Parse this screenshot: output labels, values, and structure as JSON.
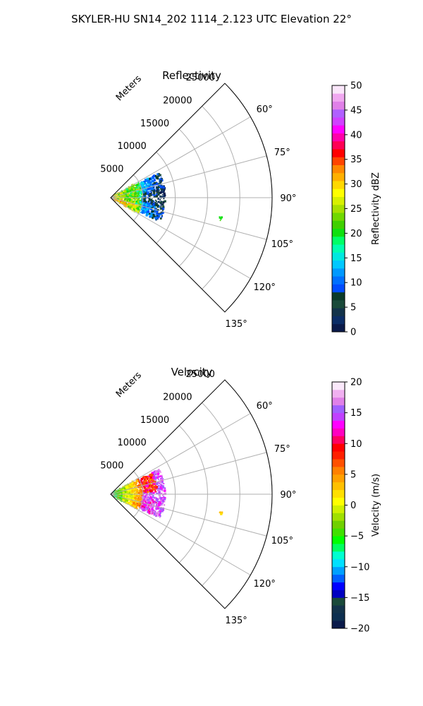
{
  "suptitle": "SKYLER-HU  SN14_202  1114_2.123 UTC Elevation 22°",
  "chart_data": [
    {
      "type": "heatmap",
      "kind": "polar-sector",
      "title": "Reflectivity",
      "range_axis_label": "Meters",
      "range_ticks": [
        "5000",
        "10000",
        "15000",
        "20000",
        "25000"
      ],
      "range_values": [
        5000,
        10000,
        15000,
        20000,
        25000
      ],
      "rlim": [
        0,
        25000
      ],
      "azimuth_ticks": [
        "60°",
        "75°",
        "90°",
        "105°",
        "120°",
        "135°"
      ],
      "azimuth_values": [
        60,
        75,
        90,
        105,
        120,
        135
      ],
      "azimuth_range": [
        45,
        135
      ],
      "grid": true,
      "colorbar": {
        "label": "Reflectivity dBZ",
        "range": [
          0,
          50
        ],
        "tick_labels": [
          "0",
          "5",
          "10",
          "15",
          "20",
          "25",
          "30",
          "35",
          "40",
          "45",
          "50"
        ],
        "tick_values": [
          0,
          5,
          10,
          15,
          20,
          25,
          30,
          35,
          40,
          45,
          50
        ],
        "colormap": "pyart_NWSRef",
        "colors": [
          "#0a1a4a",
          "#0b2d66",
          "#13334a",
          "#1a4a3a",
          "#0a3a2a",
          "#004cff",
          "#0070ff",
          "#0099ff",
          "#00c8ff",
          "#00e8e0",
          "#00ffb0",
          "#00ff66",
          "#10e010",
          "#40d000",
          "#70d800",
          "#a8e000",
          "#d8f000",
          "#ffff00",
          "#ffd800",
          "#ffb000",
          "#ff8800",
          "#ff4400",
          "#ff0000",
          "#ff0055",
          "#ff00aa",
          "#ff00ff",
          "#d040ff",
          "#b060ff",
          "#e080e8",
          "#f0a8f0",
          "#fae6fa"
        ]
      },
      "echoes": [
        {
          "band": "near-range",
          "r": [
            500,
            5000
          ],
          "az": [
            60,
            120
          ],
          "dbz": [
            18,
            32
          ]
        },
        {
          "band": "mid-range",
          "r": [
            5000,
            8500
          ],
          "az": [
            63,
            116
          ],
          "dbz": [
            10,
            22
          ]
        },
        {
          "band": "isolated",
          "r": [
            17000,
            17500
          ],
          "az": [
            99,
            102
          ],
          "dbz": [
            20,
            22
          ]
        }
      ]
    },
    {
      "type": "heatmap",
      "kind": "polar-sector",
      "title": "Velocity",
      "range_axis_label": "Meters",
      "range_ticks": [
        "5000",
        "10000",
        "15000",
        "20000",
        "25000"
      ],
      "range_values": [
        5000,
        10000,
        15000,
        20000,
        25000
      ],
      "rlim": [
        0,
        25000
      ],
      "azimuth_ticks": [
        "60°",
        "75°",
        "90°",
        "105°",
        "120°",
        "135°"
      ],
      "azimuth_values": [
        60,
        75,
        90,
        105,
        120,
        135
      ],
      "azimuth_range": [
        45,
        135
      ],
      "grid": true,
      "colorbar": {
        "label": "Velocity (m/s)",
        "range": [
          -20,
          20
        ],
        "tick_labels": [
          "−20",
          "−15",
          "−10",
          "−5",
          "0",
          "5",
          "10",
          "15",
          "20"
        ],
        "tick_values": [
          -20,
          -15,
          -10,
          -5,
          0,
          5,
          10,
          15,
          20
        ],
        "colormap": "pyart_BuDRd",
        "colors": [
          "#0a1a4a",
          "#0d2f50",
          "#13334a",
          "#1a4a3a",
          "#0000c0",
          "#0000ff",
          "#0060ff",
          "#00a0ff",
          "#00e0ff",
          "#00ffd0",
          "#00ff60",
          "#00ff00",
          "#40e000",
          "#70d000",
          "#a0e000",
          "#d0f000",
          "#ffff00",
          "#ffe000",
          "#ffc000",
          "#ffa000",
          "#ff8000",
          "#ff5000",
          "#ff2000",
          "#ff0000",
          "#ff0060",
          "#ff00c0",
          "#ff00ff",
          "#c040ff",
          "#a060ff",
          "#e080e8",
          "#f0b0f0",
          "#fae8fa"
        ]
      },
      "echoes": [
        {
          "band": "near-range",
          "r": [
            500,
            5000
          ],
          "az": [
            60,
            120
          ],
          "vel": [
            -8,
            4
          ]
        },
        {
          "band": "mid-range",
          "r": [
            5000,
            8500
          ],
          "az": [
            63,
            116
          ],
          "vel": [
            5,
            16
          ]
        },
        {
          "band": "isolated",
          "r": [
            17000,
            17500
          ],
          "az": [
            99,
            102
          ],
          "vel": [
            2,
            4
          ]
        }
      ]
    }
  ]
}
